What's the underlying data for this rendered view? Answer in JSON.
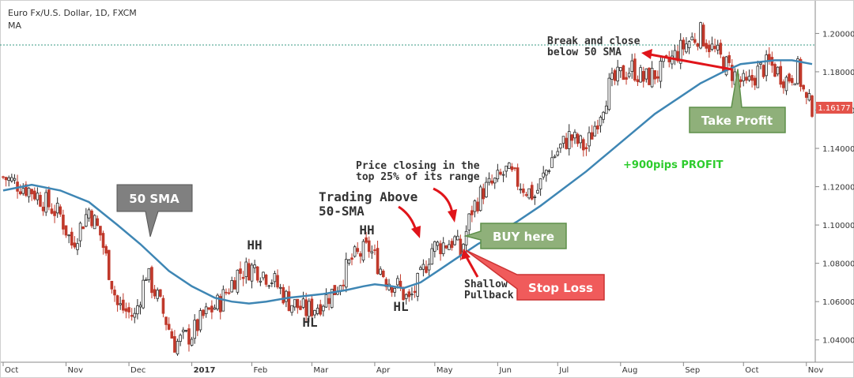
{
  "header": {
    "symbol": "Euro Fx/U.S. Dollar, 1D, FXCM",
    "indicator": "MA"
  },
  "colors": {
    "up": "#2b2b2b",
    "down": "#c0392b",
    "sma": "#3e86b4",
    "resistance": "#3a9a86",
    "green_box": "#8fb07a",
    "green_border": "#5e8f4a",
    "red_box": "#f05b5b",
    "gray_box": "#808080",
    "profit_text": "#2dcc2d",
    "arrow": "#e0141a"
  },
  "chart_data": {
    "type": "candlestick",
    "title": "Euro Fx/U.S. Dollar, 1D, FXCM",
    "ylim": [
      1.03,
      1.215
    ],
    "y_ticks": [
      "1.20000",
      "1.18000",
      "1.16000",
      "1.14000",
      "1.12000",
      "1.10000",
      "1.08000",
      "1.06000",
      "1.04000"
    ],
    "y_tick_values": [
      1.2,
      1.18,
      1.16,
      1.14,
      1.12,
      1.1,
      1.08,
      1.06,
      1.04
    ],
    "x_ticks": [
      "Oct",
      "Nov",
      "Dec",
      "2017",
      "Feb",
      "Mar",
      "Apr",
      "May",
      "Jun",
      "Jul",
      "Aug",
      "Sep",
      "Oct",
      "Nov"
    ],
    "x_tick_days": [
      0,
      22,
      44,
      66,
      87,
      108,
      130,
      151,
      173,
      194,
      216,
      238,
      259,
      281
    ],
    "total_days": 283,
    "last_price": "1.16177",
    "resistance_level": 1.194,
    "price_path": [
      [
        0,
        1.125
      ],
      [
        10,
        1.118
      ],
      [
        20,
        1.105
      ],
      [
        24,
        1.09
      ],
      [
        30,
        1.108
      ],
      [
        34,
        1.095
      ],
      [
        40,
        1.058
      ],
      [
        46,
        1.052
      ],
      [
        50,
        1.075
      ],
      [
        54,
        1.062
      ],
      [
        60,
        1.038
      ],
      [
        66,
        1.043
      ],
      [
        70,
        1.052
      ],
      [
        76,
        1.06
      ],
      [
        82,
        1.075
      ],
      [
        88,
        1.078
      ],
      [
        94,
        1.072
      ],
      [
        100,
        1.06
      ],
      [
        106,
        1.055
      ],
      [
        110,
        1.058
      ],
      [
        116,
        1.066
      ],
      [
        122,
        1.082
      ],
      [
        128,
        1.088
      ],
      [
        134,
        1.072
      ],
      [
        138,
        1.068
      ],
      [
        142,
        1.06
      ],
      [
        146,
        1.072
      ],
      [
        150,
        1.088
      ],
      [
        154,
        1.09
      ],
      [
        158,
        1.092
      ],
      [
        160,
        1.085
      ],
      [
        164,
        1.108
      ],
      [
        168,
        1.118
      ],
      [
        172,
        1.122
      ],
      [
        176,
        1.128
      ],
      [
        182,
        1.12
      ],
      [
        186,
        1.115
      ],
      [
        192,
        1.135
      ],
      [
        198,
        1.146
      ],
      [
        204,
        1.14
      ],
      [
        208,
        1.156
      ],
      [
        212,
        1.172
      ],
      [
        216,
        1.178
      ],
      [
        220,
        1.182
      ],
      [
        224,
        1.176
      ],
      [
        230,
        1.18
      ],
      [
        236,
        1.19
      ],
      [
        240,
        1.196
      ],
      [
        244,
        1.2
      ],
      [
        248,
        1.192
      ],
      [
        252,
        1.185
      ],
      [
        256,
        1.178
      ],
      [
        260,
        1.172
      ],
      [
        264,
        1.18
      ],
      [
        268,
        1.184
      ],
      [
        274,
        1.176
      ],
      [
        278,
        1.181
      ],
      [
        281,
        1.164
      ],
      [
        283,
        1.162
      ]
    ],
    "sma_path": [
      [
        0,
        1.118
      ],
      [
        10,
        1.121
      ],
      [
        20,
        1.118
      ],
      [
        30,
        1.112
      ],
      [
        40,
        1.1
      ],
      [
        48,
        1.09
      ],
      [
        58,
        1.076
      ],
      [
        66,
        1.068
      ],
      [
        74,
        1.062
      ],
      [
        80,
        1.06
      ],
      [
        86,
        1.059
      ],
      [
        92,
        1.06
      ],
      [
        100,
        1.062
      ],
      [
        106,
        1.063
      ],
      [
        112,
        1.064
      ],
      [
        120,
        1.066
      ],
      [
        126,
        1.068
      ],
      [
        130,
        1.069
      ],
      [
        136,
        1.068
      ],
      [
        140,
        1.067
      ],
      [
        146,
        1.07
      ],
      [
        152,
        1.076
      ],
      [
        158,
        1.082
      ],
      [
        166,
        1.09
      ],
      [
        172,
        1.095
      ],
      [
        180,
        1.102
      ],
      [
        188,
        1.11
      ],
      [
        196,
        1.119
      ],
      [
        204,
        1.128
      ],
      [
        212,
        1.138
      ],
      [
        220,
        1.148
      ],
      [
        228,
        1.158
      ],
      [
        236,
        1.166
      ],
      [
        244,
        1.174
      ],
      [
        252,
        1.18
      ],
      [
        258,
        1.184
      ],
      [
        264,
        1.185
      ],
      [
        270,
        1.186
      ],
      [
        276,
        1.186
      ],
      [
        283,
        1.184
      ]
    ]
  },
  "annotations": {
    "sma_label": "50 SMA",
    "hh_1": "HH",
    "hh_2": "HH",
    "hl_1": "HL",
    "hl_2": "HL",
    "trading_above_line1": "Trading Above",
    "trading_above_line2": "50-SMA",
    "price_closing_line1": "Price closing in the",
    "price_closing_line2": "top 25% of its range",
    "buy_here": "BUY here",
    "shallow_line1": "Shallow",
    "shallow_line2": "Pullback",
    "stop_loss": "Stop Loss",
    "profit": "+900pips PROFIT",
    "break_line1": "Break and close",
    "break_line2": "below 50 SMA",
    "take_profit": "Take Profit"
  }
}
